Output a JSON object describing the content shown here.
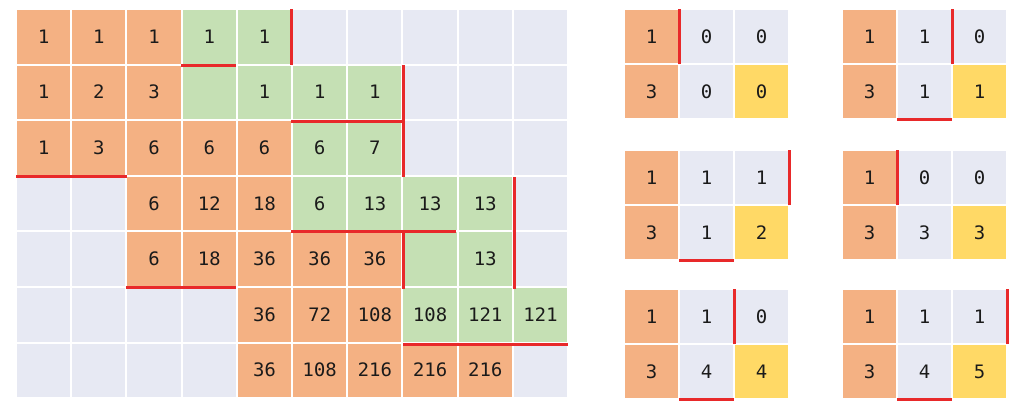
{
  "colors": {
    "orange": "#f4b183",
    "green": "#c5e0b4",
    "empty": "#e7e9f3",
    "yellow": "#ffd966",
    "border_red": "#e8292a"
  },
  "main_grid": {
    "rows": [
      [
        {
          "v": "1",
          "c": "o"
        },
        {
          "v": "1",
          "c": "o"
        },
        {
          "v": "1",
          "c": "o"
        },
        {
          "v": "1",
          "c": "g"
        },
        {
          "v": "1",
          "c": "g"
        },
        {
          "v": "",
          "c": "e"
        },
        {
          "v": "",
          "c": "e"
        },
        {
          "v": "",
          "c": "e"
        },
        {
          "v": "",
          "c": "e"
        },
        {
          "v": "",
          "c": "e"
        }
      ],
      [
        {
          "v": "1",
          "c": "o"
        },
        {
          "v": "2",
          "c": "o"
        },
        {
          "v": "3",
          "c": "o"
        },
        {
          "v": "",
          "c": "g"
        },
        {
          "v": "1",
          "c": "g"
        },
        {
          "v": "1",
          "c": "g"
        },
        {
          "v": "1",
          "c": "g"
        },
        {
          "v": "",
          "c": "e"
        },
        {
          "v": "",
          "c": "e"
        },
        {
          "v": "",
          "c": "e"
        }
      ],
      [
        {
          "v": "1",
          "c": "o"
        },
        {
          "v": "3",
          "c": "o"
        },
        {
          "v": "6",
          "c": "o"
        },
        {
          "v": "6",
          "c": "o"
        },
        {
          "v": "6",
          "c": "o"
        },
        {
          "v": "6",
          "c": "g"
        },
        {
          "v": "7",
          "c": "g"
        },
        {
          "v": "",
          "c": "e"
        },
        {
          "v": "",
          "c": "e"
        },
        {
          "v": "",
          "c": "e"
        }
      ],
      [
        {
          "v": "",
          "c": "e"
        },
        {
          "v": "",
          "c": "e"
        },
        {
          "v": "6",
          "c": "o"
        },
        {
          "v": "12",
          "c": "o"
        },
        {
          "v": "18",
          "c": "o"
        },
        {
          "v": "6",
          "c": "g"
        },
        {
          "v": "13",
          "c": "g"
        },
        {
          "v": "13",
          "c": "g"
        },
        {
          "v": "13",
          "c": "g"
        },
        {
          "v": "",
          "c": "e"
        }
      ],
      [
        {
          "v": "",
          "c": "e"
        },
        {
          "v": "",
          "c": "e"
        },
        {
          "v": "6",
          "c": "o"
        },
        {
          "v": "18",
          "c": "o"
        },
        {
          "v": "36",
          "c": "o"
        },
        {
          "v": "36",
          "c": "o"
        },
        {
          "v": "36",
          "c": "o"
        },
        {
          "v": "",
          "c": "g"
        },
        {
          "v": "13",
          "c": "g"
        },
        {
          "v": "",
          "c": "e"
        }
      ],
      [
        {
          "v": "",
          "c": "e"
        },
        {
          "v": "",
          "c": "e"
        },
        {
          "v": "",
          "c": "e"
        },
        {
          "v": "",
          "c": "e"
        },
        {
          "v": "36",
          "c": "o"
        },
        {
          "v": "72",
          "c": "o"
        },
        {
          "v": "108",
          "c": "o"
        },
        {
          "v": "108",
          "c": "g"
        },
        {
          "v": "121",
          "c": "g"
        },
        {
          "v": "121",
          "c": "g"
        }
      ],
      [
        {
          "v": "",
          "c": "e"
        },
        {
          "v": "",
          "c": "e"
        },
        {
          "v": "",
          "c": "e"
        },
        {
          "v": "",
          "c": "e"
        },
        {
          "v": "36",
          "c": "o"
        },
        {
          "v": "108",
          "c": "o"
        },
        {
          "v": "216",
          "c": "o"
        },
        {
          "v": "216",
          "c": "o"
        },
        {
          "v": "216",
          "c": "o"
        },
        {
          "v": "",
          "c": "e"
        }
      ]
    ]
  },
  "mini_grids": [
    {
      "rows": [
        [
          "1",
          "0",
          "0"
        ],
        [
          "3",
          "0",
          "0"
        ]
      ]
    },
    {
      "rows": [
        [
          "1",
          "1",
          "0"
        ],
        [
          "3",
          "1",
          "1"
        ]
      ]
    },
    {
      "rows": [
        [
          "1",
          "1",
          "1"
        ],
        [
          "3",
          "1",
          "2"
        ]
      ]
    },
    {
      "rows": [
        [
          "1",
          "0",
          "0"
        ],
        [
          "3",
          "3",
          "3"
        ]
      ]
    },
    {
      "rows": [
        [
          "1",
          "1",
          "0"
        ],
        [
          "3",
          "4",
          "4"
        ]
      ]
    },
    {
      "rows": [
        [
          "1",
          "1",
          "1"
        ],
        [
          "3",
          "4",
          "5"
        ]
      ]
    }
  ]
}
